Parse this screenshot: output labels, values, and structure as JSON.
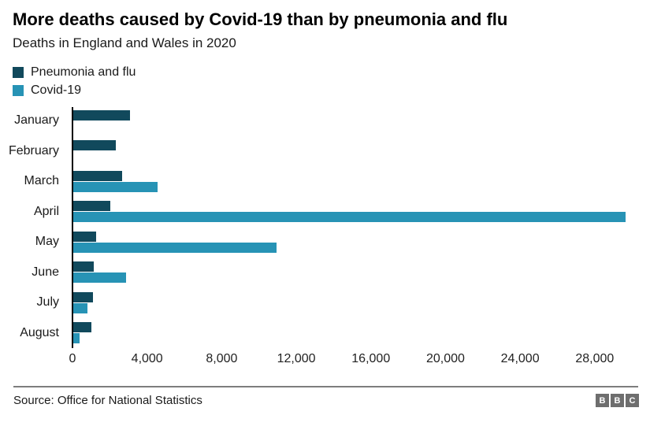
{
  "header": {
    "title": "More deaths caused by Covid-19 than by pneumonia and flu",
    "subtitle": "Deaths in England and Wales in 2020"
  },
  "legend": [
    {
      "label": "Pneumonia and flu",
      "color": "#11495c"
    },
    {
      "label": "Covid-19",
      "color": "#2793b5"
    }
  ],
  "chart_data": {
    "type": "bar",
    "orientation": "horizontal",
    "title": "More deaths caused by Covid-19 than by pneumonia and flu",
    "subtitle": "Deaths in England and Wales in 2020",
    "categories": [
      "January",
      "February",
      "March",
      "April",
      "May",
      "June",
      "July",
      "August"
    ],
    "series": [
      {
        "name": "Pneumonia and flu",
        "color": "#11495c",
        "values": [
          3000,
          2250,
          2600,
          1950,
          1200,
          1100,
          1050,
          950
        ]
      },
      {
        "name": "Covid-19",
        "color": "#2793b5",
        "values": [
          0,
          0,
          4450,
          29200,
          10750,
          2800,
          760,
          340
        ]
      }
    ],
    "xlim": [
      0,
      30500
    ],
    "x_ticks": {
      "values": [
        0,
        4000,
        8000,
        12000,
        16000,
        20000,
        24000,
        28000
      ],
      "labels": [
        "0",
        "4,000",
        "8,000",
        "12,000",
        "16,000",
        "20,000",
        "24,000",
        "28,000"
      ]
    },
    "grid": false,
    "legend_position": "top-left"
  },
  "footer": {
    "source": "Source: Office for National Statistics",
    "logo_letters": [
      "B",
      "B",
      "C"
    ]
  }
}
